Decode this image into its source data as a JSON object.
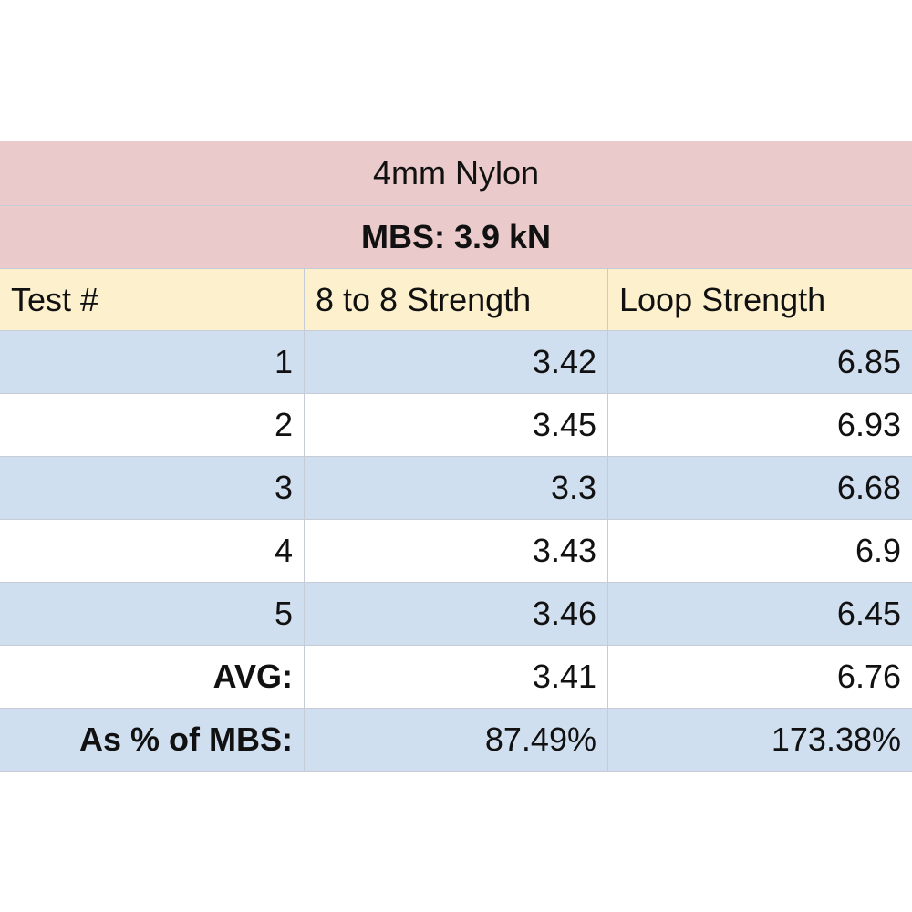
{
  "table": {
    "title": "4mm Nylon",
    "subtitle": "MBS: 3.9 kN",
    "header": [
      "Test #",
      "8 to 8 Strength",
      "Loop Strength"
    ],
    "rows": [
      [
        "1",
        "3.42",
        "6.85"
      ],
      [
        "2",
        "3.45",
        "6.93"
      ],
      [
        "3",
        "3.3",
        "6.68"
      ],
      [
        "4",
        "3.43",
        "6.9"
      ],
      [
        "5",
        "3.46",
        "6.45"
      ],
      [
        "AVG:",
        "3.41",
        "6.76"
      ],
      [
        "As % of MBS:",
        "87.49%",
        "173.38%"
      ]
    ]
  }
}
